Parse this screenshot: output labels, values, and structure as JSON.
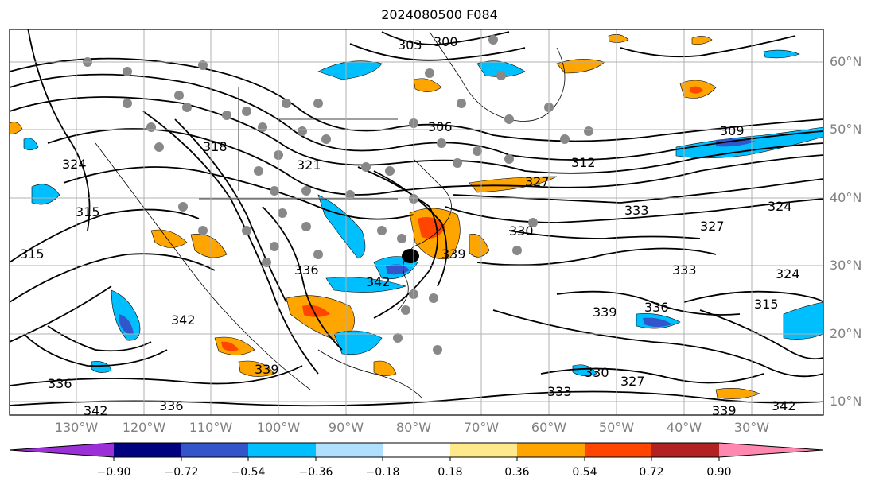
{
  "title": "2024080500 F084",
  "map": {
    "lat_labels": [
      "60°N",
      "50°N",
      "40°N",
      "30°N",
      "20°N",
      "10°N"
    ],
    "lon_labels": [
      "130°W",
      "120°W",
      "110°W",
      "100°W",
      "90°W",
      "80°W",
      "70°W",
      "60°W",
      "50°W",
      "40°W",
      "30°W"
    ],
    "contour_labels": [
      "303",
      "300",
      "306",
      "309",
      "312",
      "315",
      "318",
      "321",
      "324",
      "327",
      "330",
      "333",
      "336",
      "339",
      "342",
      "315",
      "336",
      "339",
      "342",
      "336",
      "339",
      "330",
      "327",
      "333",
      "342",
      "324",
      "315",
      "324",
      "327",
      "342",
      "336",
      "339",
      "333"
    ]
  },
  "colorbar": {
    "ticks": [
      "−0.90",
      "−0.72",
      "−0.54",
      "−0.36",
      "−0.18",
      "0.18",
      "0.36",
      "0.54",
      "0.72",
      "0.90"
    ],
    "colors": [
      "#9b30d9",
      "#000080",
      "#3355cc",
      "#00bfff",
      "#b0e0ff",
      "#ffffff",
      "#ffe98a",
      "#ffa500",
      "#ff4500",
      "#b22222",
      "#ff88b0"
    ]
  }
}
